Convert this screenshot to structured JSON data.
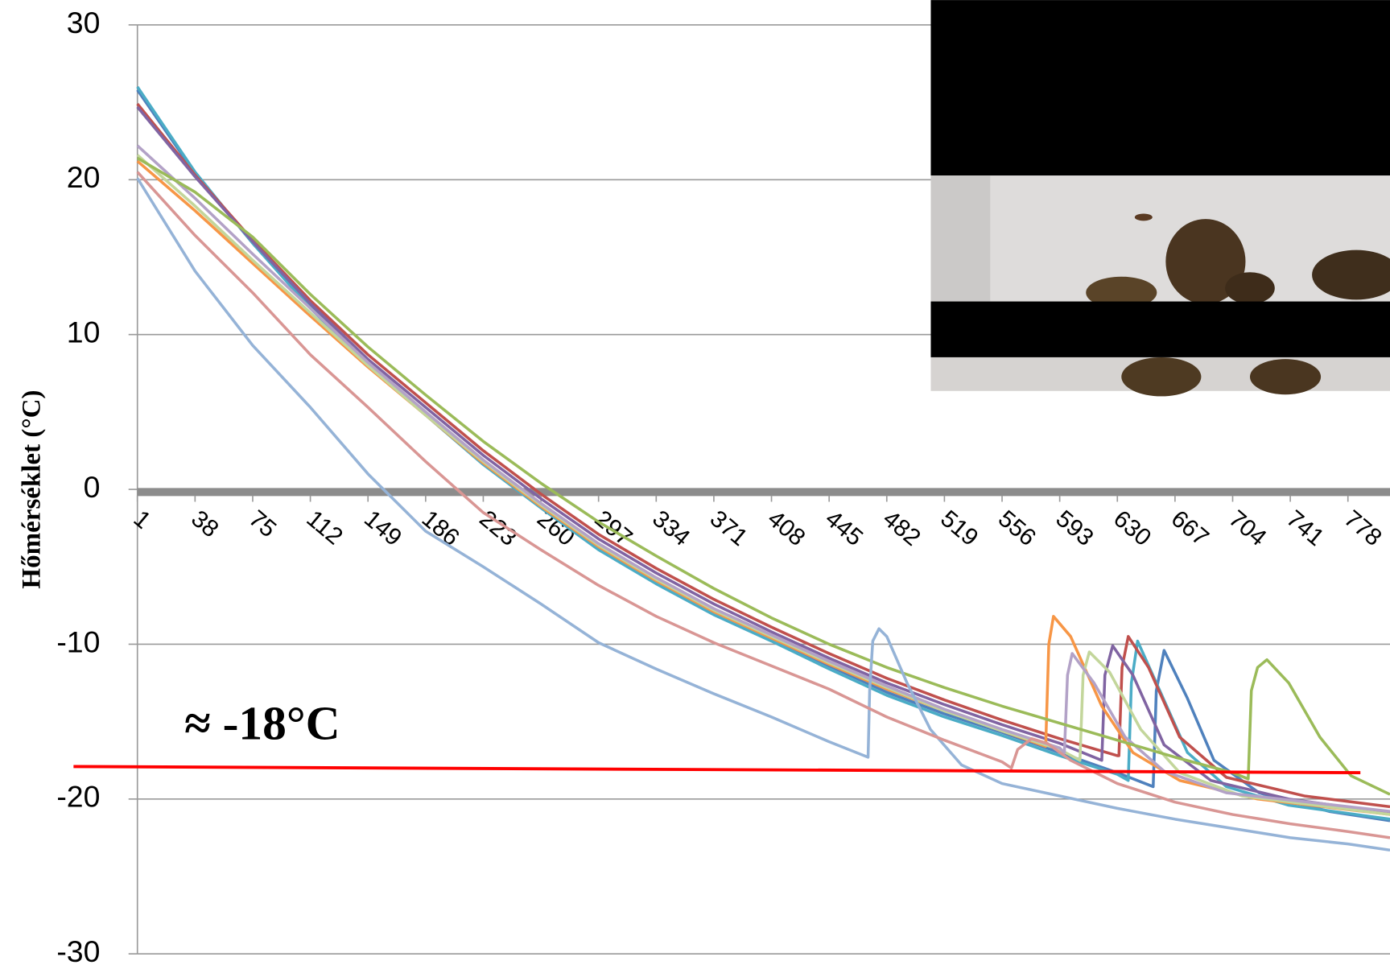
{
  "chart_data": {
    "type": "line",
    "y_label": "Hőmérséklet (°C)",
    "annotation": "≈ -18°C",
    "xlim": [
      1,
      805
    ],
    "xticks": [
      1,
      38,
      75,
      112,
      149,
      186,
      223,
      260,
      297,
      334,
      371,
      408,
      445,
      482,
      519,
      556,
      593,
      630,
      667,
      704,
      741,
      778
    ],
    "ylim": [
      -30,
      30
    ],
    "yticks": [
      -30,
      -20,
      -10,
      0,
      10,
      20,
      30
    ],
    "grid": true,
    "series": [
      {
        "color": "#4f81bd",
        "x": [
          1,
          38,
          75,
          112,
          149,
          186,
          223,
          260,
          297,
          334,
          371,
          408,
          445,
          482,
          519,
          556,
          593,
          630,
          653,
          655,
          660,
          675,
          692,
          721,
          766,
          805
        ],
        "values": [
          25.8,
          20.4,
          15.9,
          11.8,
          8.1,
          5.0,
          1.8,
          -1.0,
          -3.7,
          -5.9,
          -7.9,
          -9.6,
          -11.4,
          -13.1,
          -14.5,
          -15.7,
          -17.0,
          -18.3,
          -19.2,
          -13.0,
          -10.4,
          -13.5,
          -17.5,
          -19.6,
          -20.8,
          -21.4
        ]
      },
      {
        "color": "#4bacc6",
        "x": [
          1,
          38,
          75,
          112,
          149,
          186,
          223,
          260,
          297,
          334,
          371,
          408,
          445,
          482,
          519,
          556,
          593,
          630,
          637,
          639,
          643,
          655,
          675,
          700,
          740,
          805
        ],
        "values": [
          26.0,
          20.5,
          15.9,
          11.7,
          8.0,
          4.8,
          1.6,
          -1.2,
          -3.9,
          -6.1,
          -8.1,
          -9.8,
          -11.6,
          -13.3,
          -14.7,
          -15.9,
          -17.2,
          -18.4,
          -18.8,
          -12.5,
          -9.8,
          -12.5,
          -17.0,
          -19.2,
          -20.4,
          -21.3
        ]
      },
      {
        "color": "#c0504d",
        "x": [
          1,
          38,
          75,
          112,
          149,
          186,
          223,
          260,
          297,
          334,
          371,
          408,
          445,
          482,
          519,
          556,
          593,
          630,
          631,
          633,
          637,
          650,
          670,
          700,
          750,
          805
        ],
        "values": [
          24.9,
          20.3,
          16.1,
          12.2,
          8.7,
          5.6,
          2.5,
          -0.3,
          -2.9,
          -5.1,
          -7.1,
          -8.9,
          -10.6,
          -12.2,
          -13.6,
          -14.9,
          -16.1,
          -17.2,
          -17.2,
          -11.5,
          -9.5,
          -11.5,
          -16.0,
          -18.6,
          -19.8,
          -20.5
        ]
      },
      {
        "color": "#8064a2",
        "x": [
          1,
          38,
          75,
          112,
          149,
          186,
          223,
          260,
          297,
          334,
          371,
          408,
          445,
          482,
          519,
          556,
          593,
          620,
          622,
          627,
          640,
          660,
          690,
          740,
          805
        ],
        "values": [
          24.7,
          20.2,
          16.0,
          12.0,
          8.4,
          5.3,
          2.2,
          -0.6,
          -3.2,
          -5.4,
          -7.4,
          -9.2,
          -10.9,
          -12.5,
          -13.9,
          -15.2,
          -16.4,
          -17.5,
          -12.0,
          -10.1,
          -12.0,
          -16.5,
          -18.8,
          -20.0,
          -20.9
        ]
      },
      {
        "color": "#f79646",
        "x": [
          1,
          38,
          75,
          112,
          149,
          186,
          223,
          260,
          297,
          334,
          371,
          408,
          445,
          482,
          519,
          556,
          584,
          586,
          589,
          600,
          620,
          640,
          670,
          720,
          805
        ],
        "values": [
          21.2,
          18.0,
          14.6,
          11.2,
          7.9,
          4.8,
          1.7,
          -1.1,
          -3.7,
          -5.9,
          -7.9,
          -9.6,
          -11.3,
          -12.9,
          -14.3,
          -15.6,
          -16.6,
          -10.0,
          -8.2,
          -9.5,
          -14.0,
          -17.0,
          -18.8,
          -20.0,
          -21.0
        ]
      },
      {
        "color": "#c3d69b",
        "x": [
          1,
          38,
          75,
          112,
          149,
          186,
          223,
          260,
          297,
          334,
          371,
          408,
          445,
          482,
          519,
          556,
          593,
          606,
          608,
          612,
          625,
          645,
          670,
          710,
          805
        ],
        "values": [
          21.6,
          18.3,
          14.8,
          11.4,
          8.0,
          4.8,
          1.8,
          -1.0,
          -3.6,
          -5.8,
          -7.8,
          -9.5,
          -11.2,
          -12.8,
          -14.3,
          -15.6,
          -16.8,
          -17.5,
          -12.0,
          -10.5,
          -11.8,
          -15.5,
          -18.3,
          -19.8,
          -21.0
        ]
      },
      {
        "color": "#b3a2c7",
        "x": [
          1,
          38,
          75,
          112,
          149,
          186,
          223,
          260,
          297,
          334,
          371,
          408,
          445,
          482,
          519,
          556,
          593,
          596,
          598,
          601,
          615,
          635,
          660,
          700,
          805
        ],
        "values": [
          22.2,
          18.8,
          15.2,
          11.7,
          8.2,
          5.0,
          1.9,
          -0.9,
          -3.5,
          -5.7,
          -7.7,
          -9.4,
          -11.1,
          -12.7,
          -14.2,
          -15.5,
          -16.7,
          -17.0,
          -12.0,
          -10.6,
          -12.5,
          -16.0,
          -18.2,
          -19.6,
          -20.8
        ]
      },
      {
        "color": "#9bbb59",
        "x": [
          1,
          38,
          75,
          112,
          149,
          186,
          223,
          260,
          297,
          334,
          371,
          408,
          445,
          482,
          519,
          556,
          593,
          630,
          667,
          704,
          714,
          716,
          720,
          726,
          740,
          760,
          780,
          805
        ],
        "values": [
          21.4,
          19.2,
          16.3,
          12.6,
          9.2,
          6.1,
          3.1,
          0.4,
          -2.1,
          -4.3,
          -6.4,
          -8.3,
          -10.0,
          -11.5,
          -12.8,
          -14.0,
          -15.1,
          -16.2,
          -17.3,
          -18.3,
          -18.7,
          -13.0,
          -11.5,
          -11.0,
          -12.5,
          -16.0,
          -18.5,
          -19.7
        ]
      },
      {
        "color": "#95b3d7",
        "x": [
          1,
          38,
          75,
          112,
          149,
          186,
          223,
          260,
          297,
          334,
          371,
          408,
          445,
          470,
          471,
          473,
          477,
          482,
          495,
          510,
          530,
          556,
          593,
          630,
          667,
          704,
          741,
          778,
          805
        ],
        "values": [
          20.1,
          14.1,
          9.3,
          5.3,
          1.0,
          -2.7,
          -5.0,
          -7.4,
          -9.9,
          -11.6,
          -13.2,
          -14.7,
          -16.3,
          -17.3,
          -13.0,
          -9.8,
          -9.0,
          -9.5,
          -12.5,
          -15.5,
          -17.8,
          -19.0,
          -19.8,
          -20.6,
          -21.3,
          -21.9,
          -22.5,
          -22.9,
          -23.3
        ]
      },
      {
        "color": "#d99694",
        "x": [
          1,
          38,
          75,
          112,
          149,
          186,
          223,
          260,
          297,
          334,
          371,
          408,
          445,
          482,
          519,
          556,
          562,
          566,
          575,
          585,
          600,
          630,
          667,
          704,
          741,
          778,
          805
        ],
        "values": [
          20.5,
          16.4,
          12.7,
          8.7,
          5.3,
          1.8,
          -1.5,
          -3.9,
          -6.2,
          -8.2,
          -9.9,
          -11.4,
          -12.9,
          -14.7,
          -16.2,
          -17.6,
          -18.0,
          -16.8,
          -16.1,
          -16.4,
          -17.5,
          -19.0,
          -20.2,
          -21.0,
          -21.6,
          -22.1,
          -22.5
        ]
      }
    ],
    "reference_line": {
      "color": "#ff0000",
      "x": [
        -40,
        786
      ],
      "values": [
        -17.9,
        -18.3
      ]
    }
  }
}
